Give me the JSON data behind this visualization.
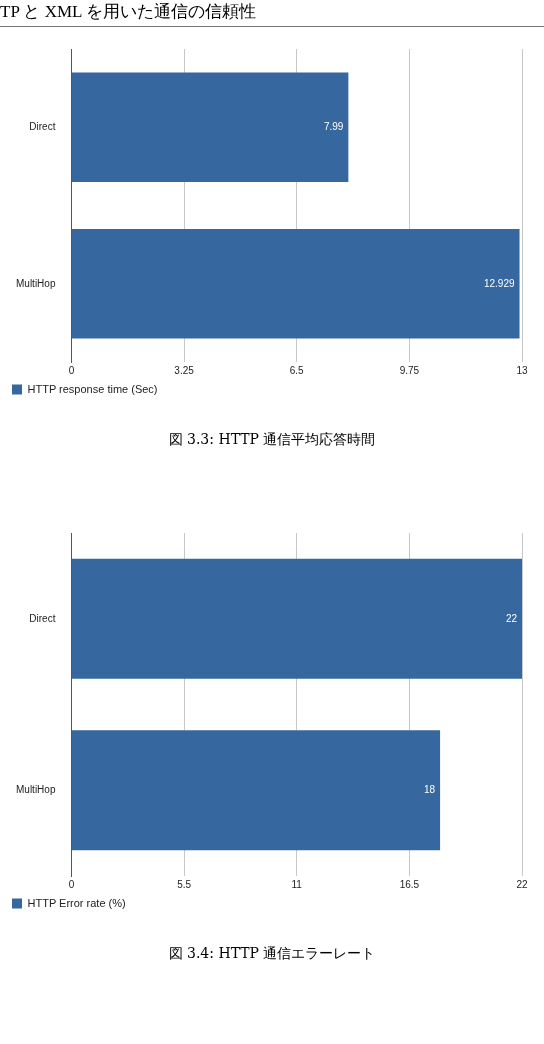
{
  "chart_data": [
    {
      "type": "bar",
      "orientation": "horizontal",
      "title": "図 3.3: HTTP 通信平均応答時間",
      "annotations": [
        "TP と XML を用いた通信の信頼性"
      ],
      "categories": [
        "Direct",
        "MultiHop"
      ],
      "series": [
        {
          "name": "HTTP response time (Sec)",
          "color": "#36679e",
          "values": [
            7.99,
            12.929
          ]
        }
      ],
      "xlim": [
        0,
        13
      ],
      "xticks": [
        0,
        3.25,
        6.5,
        9.75,
        13
      ],
      "grid": "x",
      "legend": "bottom left",
      "data_labels": true
    },
    {
      "type": "bar",
      "orientation": "horizontal",
      "title": "図 3.4: HTTP 通信エラーレート",
      "categories": [
        "Direct",
        "MultiHop"
      ],
      "series": [
        {
          "name": "HTTP Error rate (%)",
          "color": "#36679e",
          "values": [
            22,
            18
          ]
        }
      ],
      "xlim": [
        0,
        22
      ],
      "xticks": [
        0,
        5.5,
        11,
        16.5,
        22
      ],
      "grid": "x",
      "legend": "bottom left",
      "data_labels": true
    }
  ]
}
